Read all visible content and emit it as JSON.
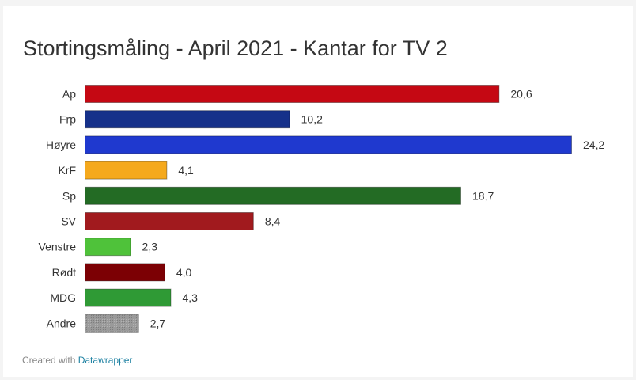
{
  "chart_data": {
    "type": "bar",
    "orientation": "horizontal",
    "title": "Stortingsmåling - April 2021 - Kantar for TV 2",
    "categories": [
      "Ap",
      "Frp",
      "Høyre",
      "KrF",
      "Sp",
      "SV",
      "Venstre",
      "Rødt",
      "MDG",
      "Andre"
    ],
    "values": [
      20.6,
      10.2,
      24.2,
      4.1,
      18.7,
      8.4,
      2.3,
      4.0,
      4.3,
      2.7
    ],
    "value_labels": [
      "20,6",
      "10,2",
      "24,2",
      "4,1",
      "18,7",
      "8,4",
      "2,3",
      "4,0",
      "4,3",
      "2,7"
    ],
    "colors": [
      "#c50813",
      "#16318a",
      "#1f39cf",
      "#f5a91d",
      "#236b24",
      "#a11a1e",
      "#4fc23a",
      "#7c0004",
      "#2f9a35",
      "#8f8f8f"
    ],
    "pattern_categories": [
      "Andre"
    ],
    "xlim": [
      0,
      24.2
    ],
    "grid": false,
    "legend": "none"
  },
  "footer": {
    "prefix": "Created with",
    "link_label": "Datawrapper"
  }
}
